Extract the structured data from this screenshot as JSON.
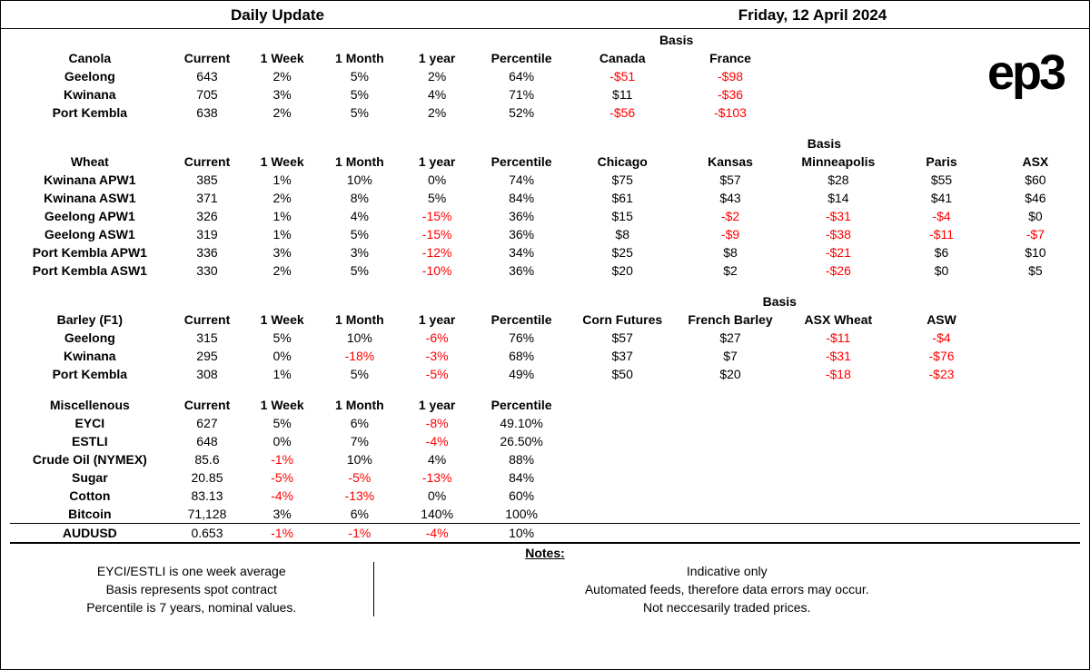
{
  "header": {
    "title": "Daily Update",
    "date": "Friday, 12 April 2024"
  },
  "logo": "ep3",
  "colors": {
    "negative": "#ff0000",
    "text": "#000000",
    "background": "#ffffff"
  },
  "columns_common": [
    "Current",
    "1 Week",
    "1 Month",
    "1 year",
    "Percentile"
  ],
  "basis_label": "Basis",
  "canola": {
    "label": "Canola",
    "basis_cols": [
      "Canada",
      "France"
    ],
    "rows": [
      {
        "name": "Geelong",
        "current": "643",
        "wk": "2%",
        "mo": "5%",
        "yr": "2%",
        "pct": "64%",
        "basis": [
          "-$51",
          "-$98"
        ]
      },
      {
        "name": "Kwinana",
        "current": "705",
        "wk": "3%",
        "mo": "5%",
        "yr": "4%",
        "pct": "71%",
        "basis": [
          "$11",
          "-$36"
        ]
      },
      {
        "name": "Port Kembla",
        "current": "638",
        "wk": "2%",
        "mo": "5%",
        "yr": "2%",
        "pct": "52%",
        "basis": [
          "-$56",
          "-$103"
        ]
      }
    ]
  },
  "wheat": {
    "label": "Wheat",
    "basis_cols": [
      "Chicago",
      "Kansas",
      "Minneapolis",
      "Paris",
      "ASX"
    ],
    "rows": [
      {
        "name": "Kwinana APW1",
        "current": "385",
        "wk": "1%",
        "mo": "10%",
        "yr": "0%",
        "pct": "74%",
        "basis": [
          "$75",
          "$57",
          "$28",
          "$55",
          "$60"
        ]
      },
      {
        "name": "Kwinana ASW1",
        "current": "371",
        "wk": "2%",
        "mo": "8%",
        "yr": "5%",
        "pct": "84%",
        "basis": [
          "$61",
          "$43",
          "$14",
          "$41",
          "$46"
        ]
      },
      {
        "name": "Geelong APW1",
        "current": "326",
        "wk": "1%",
        "mo": "4%",
        "yr": "-15%",
        "pct": "36%",
        "basis": [
          "$15",
          "-$2",
          "-$31",
          "-$4",
          "$0"
        ]
      },
      {
        "name": "Geelong ASW1",
        "current": "319",
        "wk": "1%",
        "mo": "5%",
        "yr": "-15%",
        "pct": "36%",
        "basis": [
          "$8",
          "-$9",
          "-$38",
          "-$11",
          "-$7"
        ]
      },
      {
        "name": "Port Kembla APW1",
        "current": "336",
        "wk": "3%",
        "mo": "3%",
        "yr": "-12%",
        "pct": "34%",
        "basis": [
          "$25",
          "$8",
          "-$21",
          "$6",
          "$10"
        ]
      },
      {
        "name": "Port Kembla ASW1",
        "current": "330",
        "wk": "2%",
        "mo": "5%",
        "yr": "-10%",
        "pct": "36%",
        "basis": [
          "$20",
          "$2",
          "-$26",
          "$0",
          "$5"
        ]
      }
    ]
  },
  "barley": {
    "label": "Barley (F1)",
    "basis_cols": [
      "Corn Futures",
      "French Barley",
      "ASX Wheat",
      "ASW"
    ],
    "rows": [
      {
        "name": "Geelong",
        "current": "315",
        "wk": "5%",
        "mo": "10%",
        "yr": "-6%",
        "pct": "76%",
        "basis": [
          "$57",
          "$27",
          "-$11",
          "-$4"
        ]
      },
      {
        "name": "Kwinana",
        "current": "295",
        "wk": "0%",
        "mo": "-18%",
        "yr": "-3%",
        "pct": "68%",
        "basis": [
          "$37",
          "$7",
          "-$31",
          "-$76"
        ]
      },
      {
        "name": "Port Kembla",
        "current": "308",
        "wk": "1%",
        "mo": "5%",
        "yr": "-5%",
        "pct": "49%",
        "basis": [
          "$50",
          "$20",
          "-$18",
          "-$23"
        ]
      }
    ]
  },
  "misc": {
    "label": "Miscellenous",
    "rows": [
      {
        "name": "EYCI",
        "current": "627",
        "wk": "5%",
        "mo": "6%",
        "yr": "-8%",
        "pct": "49.10%"
      },
      {
        "name": "ESTLI",
        "current": "648",
        "wk": "0%",
        "mo": "7%",
        "yr": "-4%",
        "pct": "26.50%"
      },
      {
        "name": "Crude Oil (NYMEX)",
        "current": "85.6",
        "wk": "-1%",
        "mo": "10%",
        "yr": "4%",
        "pct": "88%"
      },
      {
        "name": "Sugar",
        "current": "20.85",
        "wk": "-5%",
        "mo": "-5%",
        "yr": "-13%",
        "pct": "84%"
      },
      {
        "name": "Cotton",
        "current": "83.13",
        "wk": "-4%",
        "mo": "-13%",
        "yr": "0%",
        "pct": "60%"
      },
      {
        "name": "Bitcoin",
        "current": "71,128",
        "wk": "3%",
        "mo": "6%",
        "yr": "140%",
        "pct": "100%"
      }
    ]
  },
  "aud": {
    "name": "AUDUSD",
    "current": "0.653",
    "wk": "-1%",
    "mo": "-1%",
    "yr": "-4%",
    "pct": "10%"
  },
  "notes": {
    "title": "Notes:",
    "left": [
      "EYCI/ESTLI is one week average",
      "Basis represents spot contract",
      "Percentile is 7 years, nominal values."
    ],
    "right": [
      "Indicative only",
      "Automated feeds, therefore data errors may occur.",
      "Not neccesarily traded prices."
    ]
  }
}
